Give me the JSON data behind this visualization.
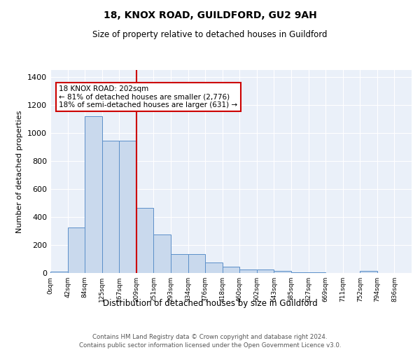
{
  "title1": "18, KNOX ROAD, GUILDFORD, GU2 9AH",
  "title2": "Size of property relative to detached houses in Guildford",
  "xlabel": "Distribution of detached houses by size in Guildford",
  "ylabel": "Number of detached properties",
  "bar_color": "#c9d9ed",
  "bar_edge_color": "#5b8fc9",
  "background_color": "#eaf0f9",
  "grid_color": "#ffffff",
  "categories": [
    "0sqm",
    "42sqm",
    "84sqm",
    "125sqm",
    "167sqm",
    "209sqm",
    "251sqm",
    "293sqm",
    "334sqm",
    "376sqm",
    "418sqm",
    "460sqm",
    "502sqm",
    "543sqm",
    "585sqm",
    "627sqm",
    "669sqm",
    "711sqm",
    "752sqm",
    "794sqm",
    "836sqm"
  ],
  "values": [
    10,
    325,
    1120,
    945,
    945,
    465,
    275,
    135,
    135,
    75,
    45,
    25,
    25,
    15,
    5,
    5,
    0,
    0,
    15,
    0,
    0
  ],
  "vline_index": 5,
  "vline_color": "#cc0000",
  "annotation_text": "18 KNOX ROAD: 202sqm\n← 81% of detached houses are smaller (2,776)\n18% of semi-detached houses are larger (631) →",
  "annotation_box_color": "white",
  "annotation_box_edge_color": "#cc0000",
  "ylim": [
    0,
    1450
  ],
  "yticks": [
    0,
    200,
    400,
    600,
    800,
    1000,
    1200,
    1400
  ],
  "footer1": "Contains HM Land Registry data © Crown copyright and database right 2024.",
  "footer2": "Contains public sector information licensed under the Open Government Licence v3.0."
}
